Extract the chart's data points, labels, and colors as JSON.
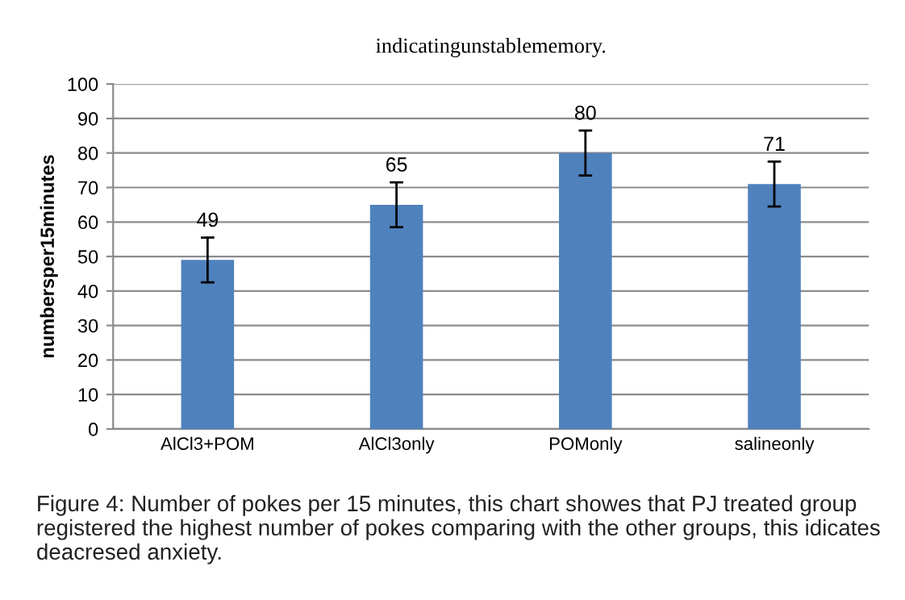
{
  "chart_data": {
    "type": "bar",
    "title": "indicatingunstablememory.",
    "ylabel": "numbersper15minutes",
    "categories": [
      "AlCl3+POM",
      "AlCl3only",
      "POMonly",
      "salineonly"
    ],
    "values": [
      49,
      65,
      80,
      71
    ],
    "errors": [
      6.5,
      6.5,
      6.5,
      6.5
    ],
    "color": "#4f81bd",
    "data_labels": true,
    "ylim": [
      0,
      100
    ],
    "yticks": [
      0,
      10,
      20,
      30,
      40,
      50,
      60,
      70,
      80,
      90,
      100
    ],
    "grid": "y",
    "annotations": [
      "Figure 4: Number of pokes per 15 minutes, this chart showes that PJ treated group registered the highest number of pokes comparing with the other groups, this idicates deacresed anxiety."
    ]
  }
}
